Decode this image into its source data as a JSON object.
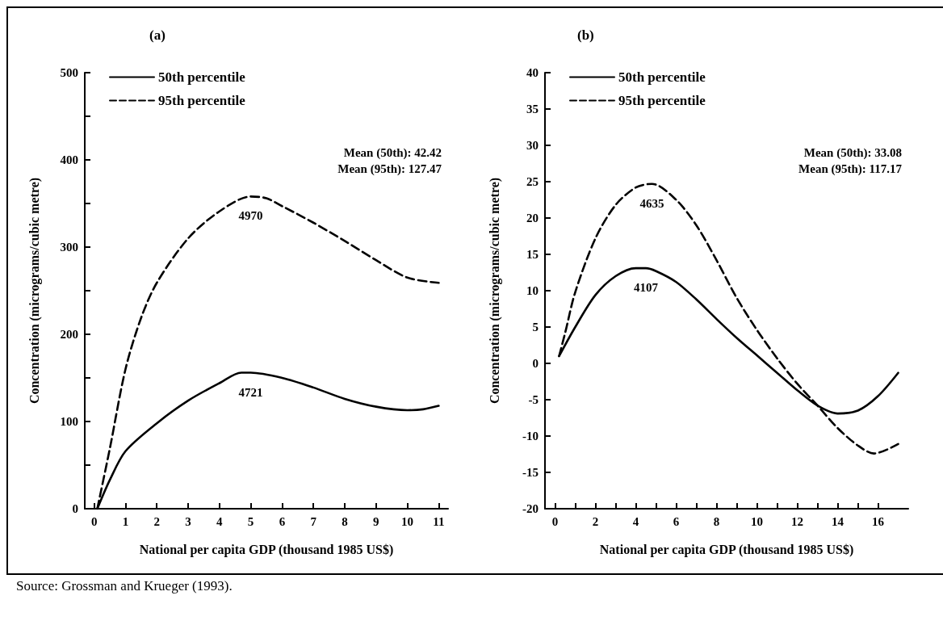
{
  "chart_data": [
    {
      "type": "line",
      "title": "(a)",
      "xlabel": "National per capita GDP (thousand 1985 US$)",
      "ylabel": "Concentration (micrograms/cubic metre)",
      "xlim": [
        -0.3,
        11.3
      ],
      "ylim": [
        0,
        500
      ],
      "xticks": [
        0,
        1,
        2,
        3,
        4,
        5,
        6,
        7,
        8,
        9,
        10,
        11
      ],
      "yticks": [
        0,
        {
          "value": 50,
          "label": null
        },
        100,
        {
          "value": 150,
          "label": null
        },
        200,
        {
          "value": 250,
          "label": null
        },
        300,
        {
          "value": 350,
          "label": null
        },
        400,
        {
          "value": 450,
          "label": null
        },
        500
      ],
      "grid": false,
      "legend": "top left",
      "marker": "none",
      "series": [
        {
          "name": "50th percentile",
          "color": "#000000",
          "line_style": "solid",
          "x": [
            0.1,
            0.5,
            1,
            2,
            3,
            4,
            4.7,
            5,
            6,
            7,
            8,
            9,
            10,
            10.5,
            11
          ],
          "values": [
            0,
            33,
            66,
            98,
            124,
            144,
            156,
            156,
            150,
            139,
            126,
            117,
            113,
            114,
            118
          ]
        },
        {
          "name": "95th percentile",
          "color": "#000000",
          "line_style": "dashed",
          "x": [
            0.1,
            0.5,
            1,
            1.5,
            2,
            3,
            4,
            5,
            5.5,
            6,
            7,
            8,
            9,
            10,
            11
          ],
          "values": [
            0,
            69,
            160,
            219,
            259,
            310,
            341,
            358,
            356,
            347,
            328,
            307,
            285,
            265,
            259
          ]
        }
      ],
      "annotations": [
        "Mean (50th): 42.42",
        "Mean (95th): 127.47",
        {
          "text": "4970",
          "x": 5,
          "y": 358
        },
        {
          "text": "4721",
          "x": 5,
          "y": 156
        }
      ]
    },
    {
      "type": "line",
      "title": "(b)",
      "xlabel": "National per capita GDP (thousand 1985 US$)",
      "ylabel": "Concentration (micrograms/cubic metre)",
      "xlim": [
        -0.5,
        17.5
      ],
      "ylim": [
        -20,
        40
      ],
      "xticks": [
        0,
        {
          "value": 1,
          "label": null
        },
        2,
        {
          "value": 3,
          "label": null
        },
        4,
        {
          "value": 5,
          "label": null
        },
        6,
        {
          "value": 7,
          "label": null
        },
        8,
        {
          "value": 9,
          "label": null
        },
        10,
        {
          "value": 11,
          "label": null
        },
        12,
        {
          "value": 13,
          "label": null
        },
        14,
        {
          "value": 15,
          "label": null
        },
        16
      ],
      "yticks": [
        -20,
        -15,
        -10,
        -5,
        0,
        5,
        10,
        15,
        20,
        25,
        30,
        35,
        40
      ],
      "grid": false,
      "legend": "top left",
      "marker": "none",
      "series": [
        {
          "name": "50th percentile",
          "color": "#000000",
          "line_style": "solid",
          "x": [
            0.2,
            1,
            2,
            3,
            4,
            4.5,
            5,
            6,
            7,
            8,
            9,
            10,
            11,
            12,
            13,
            14,
            15,
            16,
            17
          ],
          "values": [
            1,
            5,
            9.4,
            12,
            13.1,
            13.1,
            12.7,
            11.2,
            8.8,
            6.1,
            3.5,
            1.1,
            -1.3,
            -3.7,
            -5.8,
            -6.9,
            -6.5,
            -4.5,
            -1.3
          ]
        },
        {
          "name": "95th percentile",
          "color": "#000000",
          "line_style": "dashed",
          "x": [
            0.2,
            0.5,
            1,
            2,
            3,
            4,
            4.8,
            6,
            7,
            8,
            9,
            10,
            11,
            12,
            13,
            14,
            15,
            15.8,
            17
          ],
          "values": [
            1,
            4.2,
            9.8,
            17.2,
            21.8,
            24.2,
            24.7,
            22.5,
            19,
            14.2,
            9,
            4.6,
            0.7,
            -2.8,
            -5.8,
            -8.9,
            -11.3,
            -12.4,
            -11.1
          ]
        }
      ],
      "annotations": [
        "Mean (50th): 33.08",
        "Mean (95th): 117.17",
        {
          "text": "4635",
          "x": 4.8,
          "y": 24.7
        },
        {
          "text": "4107",
          "x": 4.5,
          "y": 13.1
        },
        "Source: Grossman and Krueger (1993)."
      ]
    }
  ]
}
